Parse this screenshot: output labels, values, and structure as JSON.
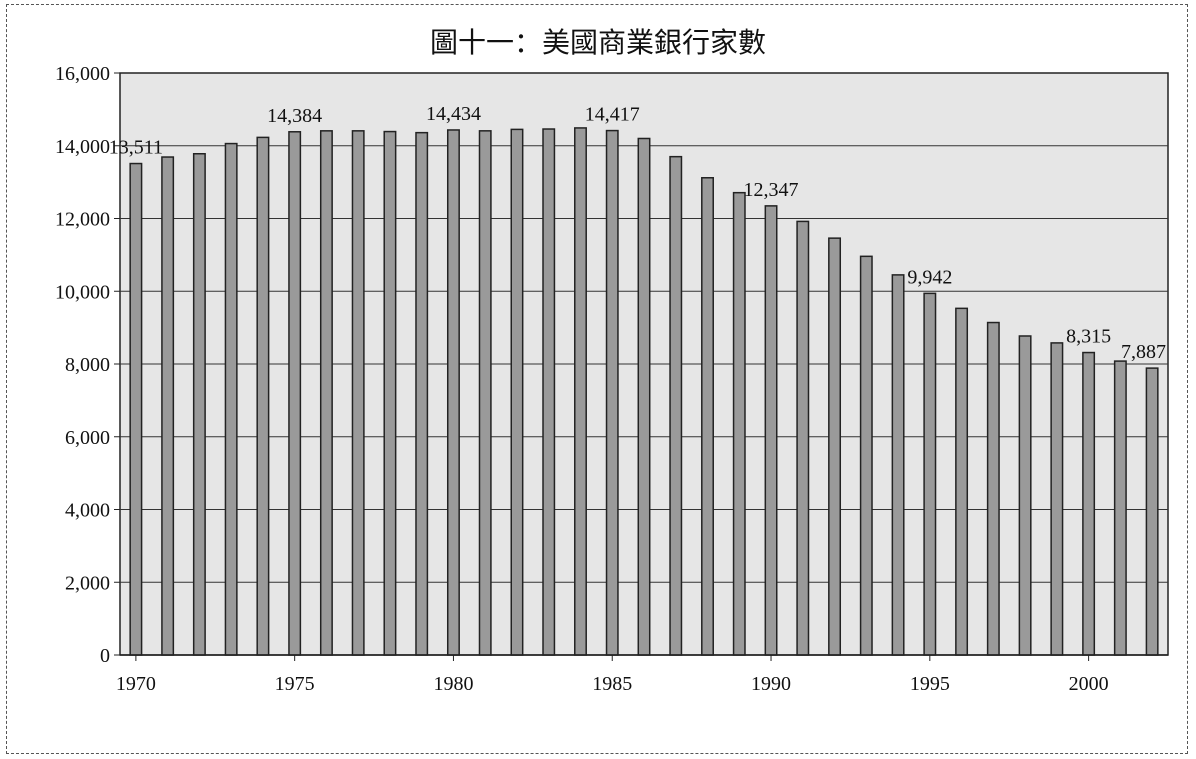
{
  "chart_data": {
    "type": "bar",
    "title": "圖十一：美國商業銀行家數",
    "xlabel": "",
    "ylabel": "",
    "ylim": [
      0,
      16000
    ],
    "y_ticks": [
      "0",
      "2,000",
      "4,000",
      "6,000",
      "8,000",
      "10,000",
      "12,000",
      "14,000",
      "16,000"
    ],
    "y_tick_values": [
      0,
      2000,
      4000,
      6000,
      8000,
      10000,
      12000,
      14000,
      16000
    ],
    "x_tick_labels": [
      "1970",
      "1975",
      "1980",
      "1985",
      "1990",
      "1995",
      "2000"
    ],
    "x_tick_years": [
      1970,
      1975,
      1980,
      1985,
      1990,
      1995,
      2000
    ],
    "grid": true,
    "categories": [
      1970,
      1971,
      1972,
      1973,
      1974,
      1975,
      1976,
      1977,
      1978,
      1979,
      1980,
      1981,
      1982,
      1983,
      1984,
      1985,
      1986,
      1987,
      1988,
      1989,
      1990,
      1991,
      1992,
      1993,
      1994,
      1995,
      1996,
      1997,
      1998,
      1999,
      2000,
      2001,
      2002
    ],
    "values": [
      13511,
      13690,
      13780,
      14060,
      14230,
      14384,
      14410,
      14410,
      14390,
      14360,
      14434,
      14410,
      14450,
      14460,
      14490,
      14417,
      14200,
      13700,
      13120,
      12710,
      12347,
      11920,
      11460,
      10960,
      10450,
      9942,
      9530,
      9140,
      8770,
      8580,
      8315,
      8080,
      7887
    ],
    "data_labels": [
      {
        "year": 1970,
        "text": "13,511"
      },
      {
        "year": 1975,
        "text": "14,384"
      },
      {
        "year": 1980,
        "text": "14,434"
      },
      {
        "year": 1985,
        "text": "14,417"
      },
      {
        "year": 1990,
        "text": "12,347"
      },
      {
        "year": 1995,
        "text": "9,942"
      },
      {
        "year": 2000,
        "text": "8,315"
      },
      {
        "year": 2002,
        "text": "7,887"
      }
    ],
    "colors": {
      "plot_background": "#e6e6e6",
      "bar_fill": "#9a9a9a",
      "bar_stroke": "#222222",
      "gridline": "#333333"
    }
  }
}
